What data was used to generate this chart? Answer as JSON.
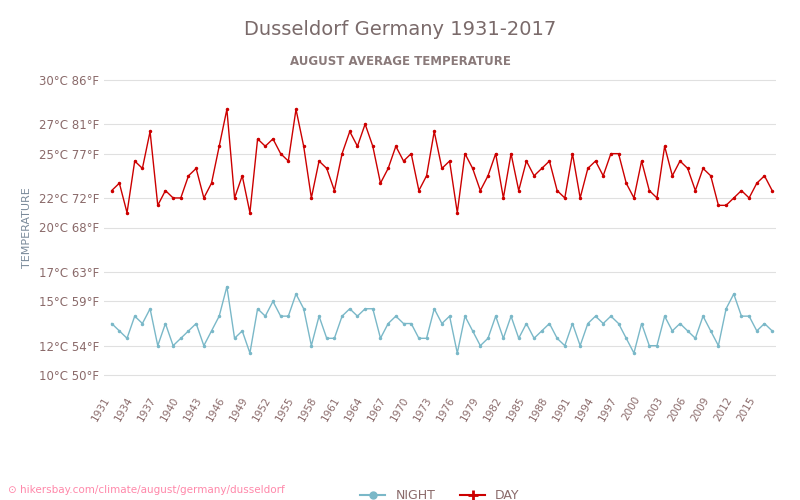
{
  "title": "Dusseldorf Germany 1931-2017",
  "subtitle": "AUGUST AVERAGE TEMPERATURE",
  "ylabel": "TEMPERATURE",
  "url": "hikersbay.com/climate/august/germany/dusseldorf",
  "title_color": "#7a6a6a",
  "subtitle_color": "#8a7a7a",
  "ylabel_color": "#7a8a9a",
  "tick_color": "#8a6a6a",
  "background_color": "#ffffff",
  "grid_color": "#e0e0e0",
  "day_color": "#cc0000",
  "night_color": "#7ab8c8",
  "years": [
    1931,
    1934,
    1937,
    1940,
    1943,
    1946,
    1949,
    1952,
    1955,
    1958,
    1961,
    1964,
    1967,
    1970,
    1973,
    1976,
    1979,
    1982,
    1985,
    1988,
    1991,
    1994,
    1997,
    2000,
    2003,
    2006,
    2009,
    2012,
    2015
  ],
  "yticks_c": [
    10,
    12,
    15,
    17,
    20,
    22,
    25,
    27,
    30
  ],
  "yticks_f": [
    50,
    54,
    59,
    63,
    68,
    72,
    77,
    81,
    86
  ],
  "ymin": 9,
  "ymax": 31,
  "day_data": [
    22.5,
    23.0,
    21.0,
    24.5,
    24.0,
    26.5,
    21.5,
    22.5,
    22.0,
    22.0,
    23.5,
    24.0,
    22.0,
    23.0,
    25.5,
    28.0,
    22.0,
    23.5,
    21.0,
    26.0,
    25.5,
    26.0,
    25.0,
    24.5,
    28.0,
    25.5,
    22.0,
    24.5,
    24.0,
    22.5,
    25.0,
    26.5,
    25.5,
    27.0,
    25.5,
    23.0,
    24.0,
    25.5,
    24.5,
    25.0,
    22.5,
    23.5,
    26.5,
    24.0,
    24.5,
    21.0,
    25.0,
    24.0,
    22.5,
    23.5,
    25.0,
    22.0,
    25.0,
    22.5,
    24.5,
    23.5,
    24.0,
    24.5,
    22.5,
    22.0,
    25.0,
    22.0,
    24.0,
    24.5,
    23.5,
    25.0,
    25.0,
    23.0,
    22.0,
    24.5,
    22.5,
    22.0,
    25.5,
    23.5,
    24.5,
    24.0,
    22.5,
    24.0,
    23.5,
    21.5,
    21.5,
    22.0,
    22.5,
    22.0,
    23.0,
    23.5,
    22.5
  ],
  "night_data": [
    13.5,
    13.0,
    12.5,
    14.0,
    13.5,
    14.5,
    12.0,
    13.5,
    12.0,
    12.5,
    13.0,
    13.5,
    12.0,
    13.0,
    14.0,
    16.0,
    12.5,
    13.0,
    11.5,
    14.5,
    14.0,
    15.0,
    14.0,
    14.0,
    15.5,
    14.5,
    12.0,
    14.0,
    12.5,
    12.5,
    14.0,
    14.5,
    14.0,
    14.5,
    14.5,
    12.5,
    13.5,
    14.0,
    13.5,
    13.5,
    12.5,
    12.5,
    14.5,
    13.5,
    14.0,
    11.5,
    14.0,
    13.0,
    12.0,
    12.5,
    14.0,
    12.5,
    14.0,
    12.5,
    13.5,
    12.5,
    13.0,
    13.5,
    12.5,
    12.0,
    13.5,
    12.0,
    13.5,
    14.0,
    13.5,
    14.0,
    13.5,
    12.5,
    11.5,
    13.5,
    12.0,
    12.0,
    14.0,
    13.0,
    13.5,
    13.0,
    12.5,
    14.0,
    13.0,
    12.0,
    14.5,
    15.5,
    14.0,
    14.0,
    13.0,
    13.5,
    13.0
  ]
}
